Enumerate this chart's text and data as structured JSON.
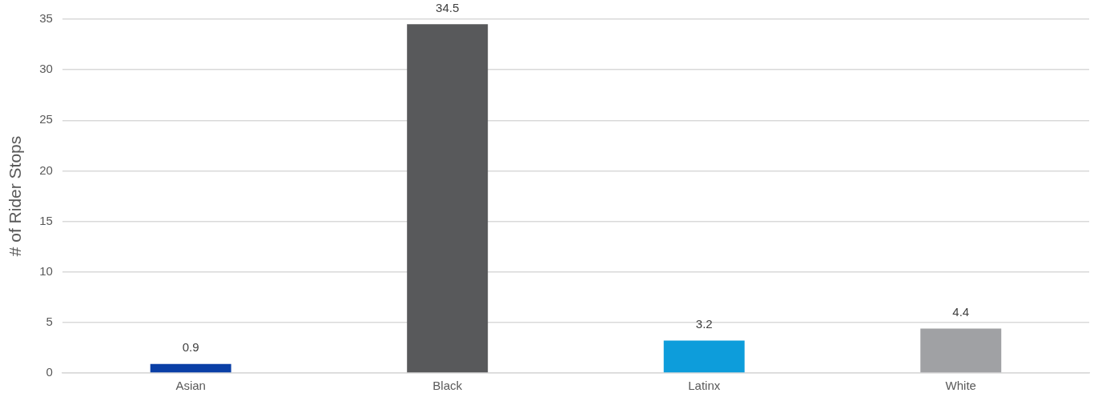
{
  "chart_data": {
    "type": "bar",
    "ylabel": "# of Rider Stops",
    "categories": [
      "Asian",
      "Black",
      "Latinx",
      "White"
    ],
    "values": [
      0.9,
      34.5,
      3.2,
      4.4
    ],
    "colors": [
      "#0a3fa6",
      "#58595b",
      "#0d9ddb",
      "#a0a1a4"
    ],
    "ylim": [
      0,
      35
    ],
    "yticks": [
      0,
      5,
      10,
      15,
      20,
      25,
      30,
      35
    ],
    "grid": "y",
    "legend": false,
    "data_labels": true
  }
}
